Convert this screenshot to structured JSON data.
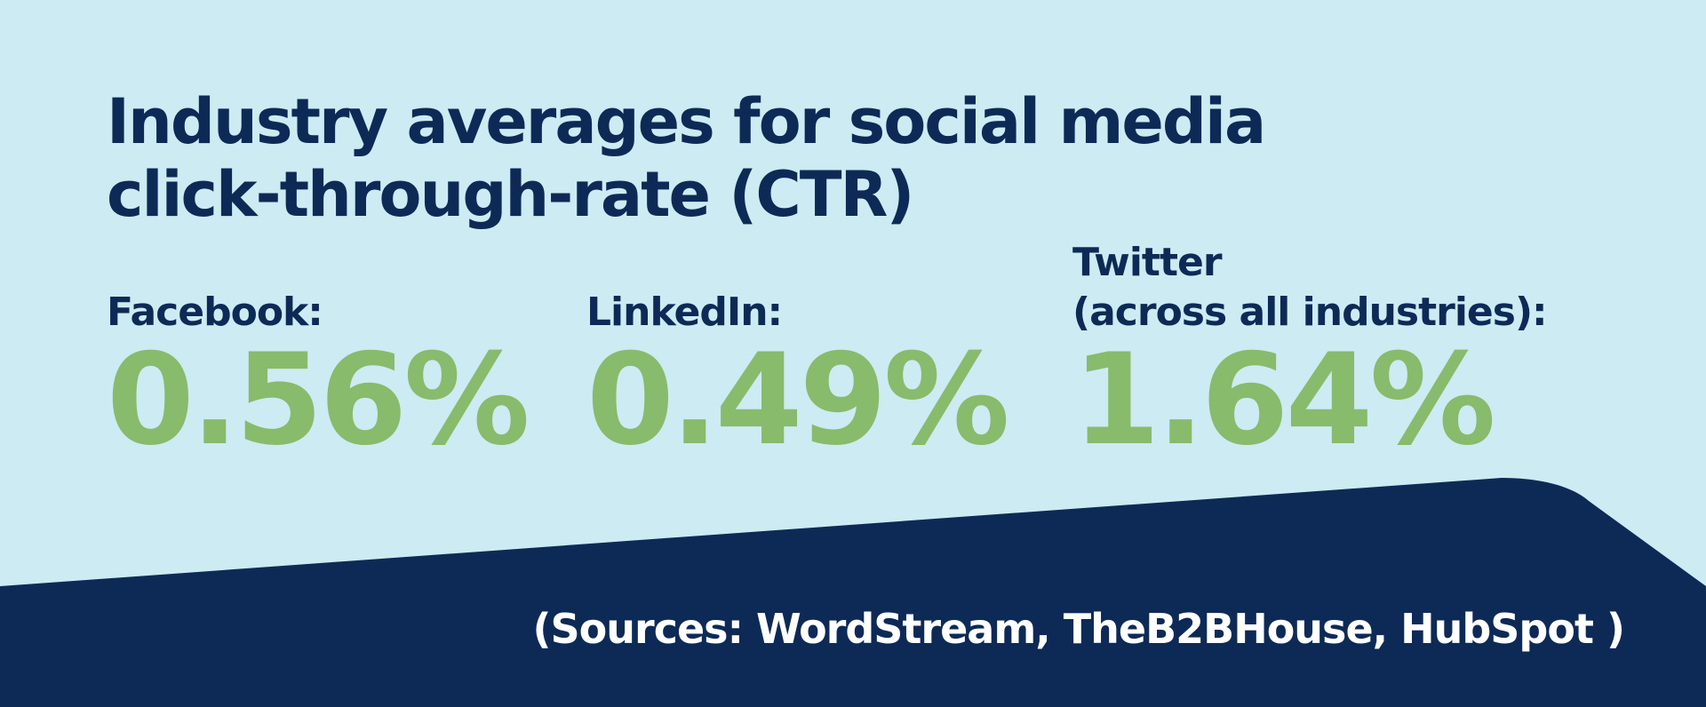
{
  "title": {
    "line1": "Industry averages for social media",
    "line2": "click-through-rate (CTR)"
  },
  "stats": [
    {
      "label_line1": "",
      "label_line2": "Facebook:",
      "value": "0.56%"
    },
    {
      "label_line1": "",
      "label_line2": "LinkedIn:",
      "value": "0.49%"
    },
    {
      "label_line1": "Twitter",
      "label_line2": "(across all industries):",
      "value": "1.64%"
    }
  ],
  "footer": {
    "sources": "(Sources: WordStream, TheB2BHouse, HubSpot )"
  },
  "colors": {
    "background": "#cdebf2",
    "navy": "#0d2a57",
    "green": "#88bb6c",
    "footer_text": "#ffffff"
  }
}
